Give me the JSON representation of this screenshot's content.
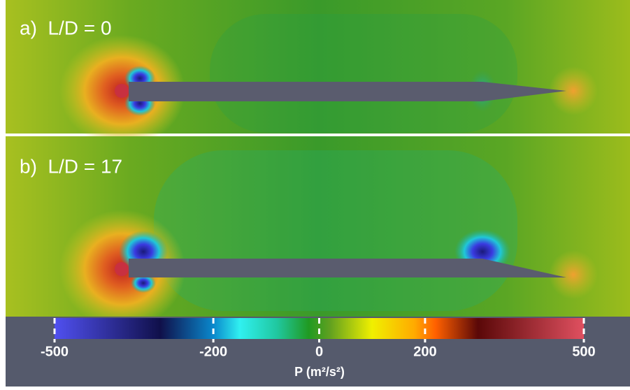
{
  "panels": [
    {
      "label": "a)  L/D = 0"
    },
    {
      "label": "b)  L/D = 17"
    }
  ],
  "colorbar": {
    "range": [
      -500,
      500
    ],
    "ticks": [
      -500,
      -200,
      0,
      200,
      500
    ],
    "label": "P (m²/s²)"
  }
}
